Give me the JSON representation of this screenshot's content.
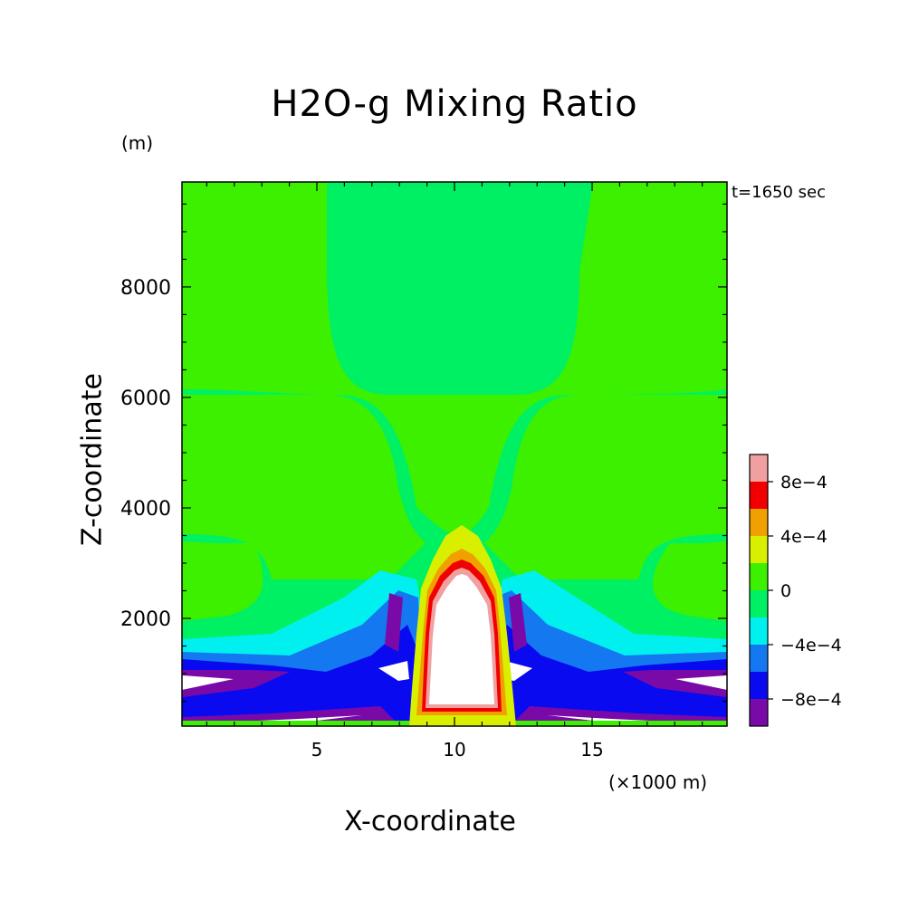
{
  "chart_data": {
    "type": "heatmap",
    "subtype": "filled-contour",
    "title": "H2O-g Mixing Ratio",
    "annotation": "t=1650 sec",
    "xlabel": "X-coordinate",
    "xunit": "(×1000 m)",
    "ylabel": "Z-coordinate",
    "yunit": "(m)",
    "xlim": [
      0.1,
      19.9
    ],
    "ylim": [
      50,
      9900
    ],
    "xticks": [
      5,
      10,
      15
    ],
    "yticks": [
      2000,
      4000,
      6000,
      8000
    ],
    "colorbar": {
      "levels": [
        -0.001,
        -0.0008,
        -0.0006,
        -0.0004,
        -0.0002,
        0,
        0.0002,
        0.0004,
        0.0006,
        0.0008,
        0.001
      ],
      "colors": [
        "#7a0aa8",
        "#0a0af0",
        "#1478f0",
        "#00f0f0",
        "#00f064",
        "#3cf000",
        "#d8f000",
        "#f0a000",
        "#f00000",
        "#f0a0a0"
      ],
      "tick_values": [
        -0.0008,
        -0.0004,
        0,
        0.0004,
        0.0008
      ],
      "tick_labels": [
        "−8e−4",
        "−4e−4",
        "0",
        "4e−4",
        "8e−4"
      ]
    },
    "regions": [
      {
        "name": "upper-background",
        "level": "0 to 2e-4",
        "color": "#3cf000"
      },
      {
        "name": "upper-central-column",
        "level": "-2e-4 to 0",
        "color": "#00f064"
      },
      {
        "name": "central-plume-core",
        "level": "above 1e-3 (white)",
        "color": "#ffffff"
      },
      {
        "name": "plume-edge",
        "level": "2e-4 to 1e-3",
        "color": "#f00000"
      },
      {
        "name": "low-level-bands",
        "level": "-1e-3 to -2e-4",
        "color": "#0a0af0"
      },
      {
        "name": "lowest-layer-minima",
        "level": "below -1e-3 (white)",
        "color": "#ffffff"
      }
    ]
  }
}
